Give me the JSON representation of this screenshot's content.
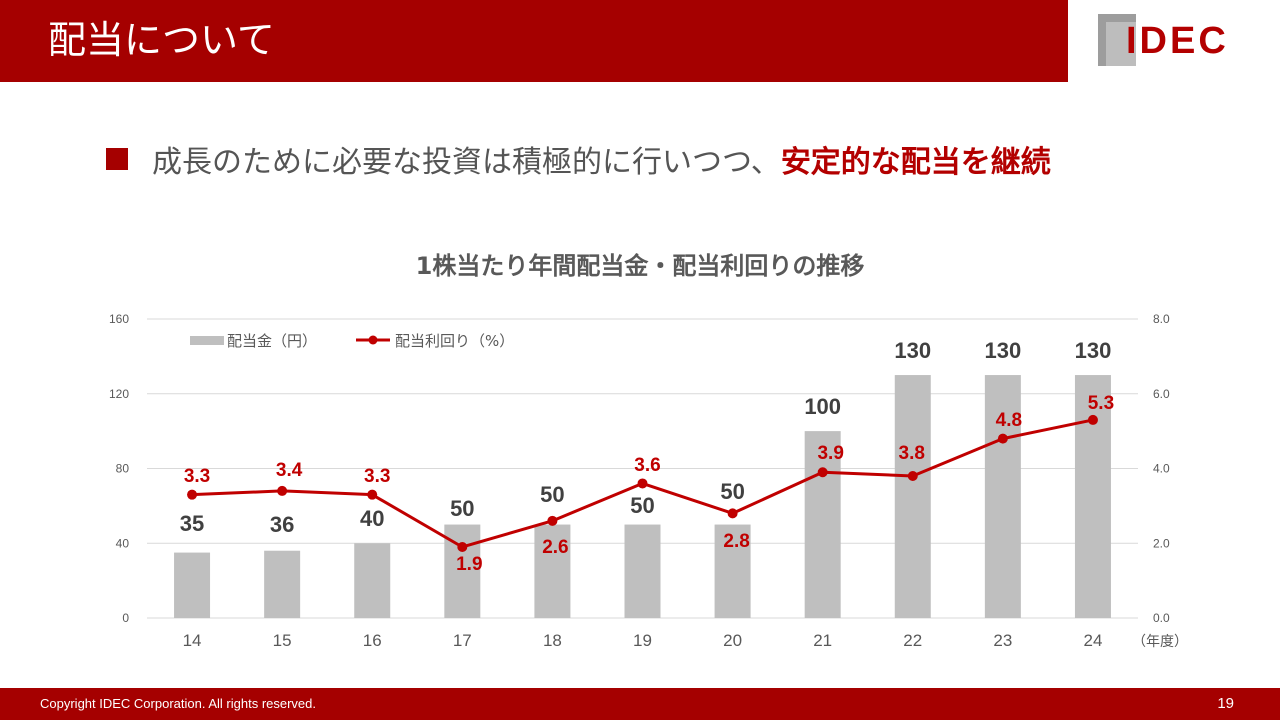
{
  "header": {
    "title": "配当について"
  },
  "logo": {
    "text": "IDEC"
  },
  "bullet": {
    "text": "成長のために必要な投資は積極的に行いつつ、",
    "emphasis": "安定的な配当を継続"
  },
  "colors": {
    "brand": "#a50000",
    "bar": "#bfbfbf",
    "line": "#c00000",
    "text": "#595959"
  },
  "chart_data": {
    "type": "bar+line",
    "title": "1株当たり年間配当金・配当利回りの推移",
    "categories": [
      "14",
      "15",
      "16",
      "17",
      "18",
      "19",
      "20",
      "21",
      "22",
      "23",
      "24"
    ],
    "x_unit_label": "（年度）",
    "series": [
      {
        "name": "配当金（円）",
        "type": "bar",
        "axis": "left",
        "values": [
          35,
          36,
          40,
          50,
          50,
          50,
          50,
          100,
          130,
          130,
          130
        ]
      },
      {
        "name": "配当利回り（%）",
        "type": "line",
        "axis": "right",
        "values": [
          3.3,
          3.4,
          3.3,
          1.9,
          2.6,
          3.6,
          2.8,
          3.9,
          3.8,
          4.8,
          5.3
        ]
      }
    ],
    "bar_labels": [
      "35",
      "36",
      "40",
      "50",
      "50",
      "50",
      "50",
      "100",
      "130",
      "130",
      "130"
    ],
    "line_labels": [
      "3.3",
      "3.4",
      "3.3",
      "1.9",
      "2.6",
      "3.6",
      "2.8",
      "3.9",
      "3.8",
      "4.8",
      "5.3"
    ],
    "y_left": {
      "min": 0,
      "max": 160,
      "ticks": [
        0,
        40,
        80,
        120,
        160
      ],
      "tick_labels": [
        "0",
        "40",
        "80",
        "120",
        "160"
      ]
    },
    "y_right": {
      "min": 0,
      "max": 8,
      "ticks": [
        0,
        2,
        4,
        6,
        8
      ],
      "tick_labels": [
        "0.0",
        "2.0",
        "4.0",
        "6.0",
        "8.0"
      ]
    },
    "legend_position": "top-left",
    "grid": true
  },
  "footer": {
    "copyright": "Copyright IDEC Corporation. All rights reserved.",
    "page": "19"
  }
}
